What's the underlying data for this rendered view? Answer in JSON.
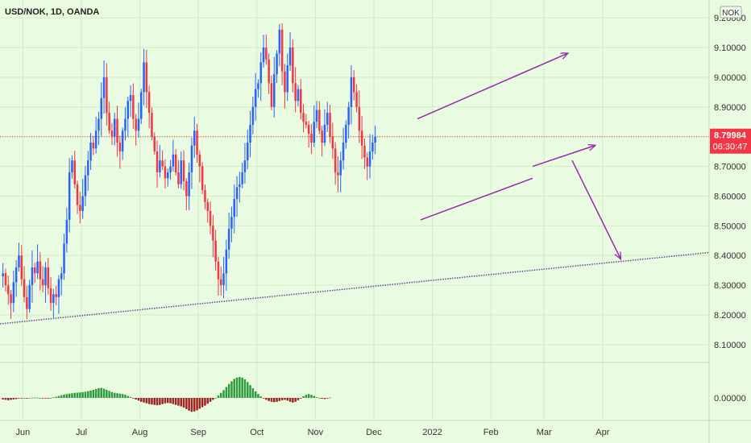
{
  "chart_data": {
    "type": "candlestick",
    "symbol_label": "USD/NOK, 1D, OANDA",
    "currency_badge": "NOK",
    "last_price_label": "8.79984",
    "countdown_label": "06:30:47",
    "ylim": [
      8.04,
      9.26
    ],
    "y_ticks": [
      "8.10000",
      "8.20000",
      "8.30000",
      "8.40000",
      "8.50000",
      "8.60000",
      "8.70000",
      "8.80000",
      "8.90000",
      "9.00000",
      "9.10000",
      "9.20000"
    ],
    "y_top_partial_label": "9.30000",
    "x_tick_labels": [
      {
        "label": "Jun",
        "bar": 8
      },
      {
        "label": "Jul",
        "bar": 30
      },
      {
        "label": "Aug",
        "bar": 52
      },
      {
        "label": "Sep",
        "bar": 74
      },
      {
        "label": "Oct",
        "bar": 96
      },
      {
        "label": "Nov",
        "bar": 118
      },
      {
        "label": "Dec",
        "bar": 140
      },
      {
        "label": "2022",
        "bar": 162
      },
      {
        "label": "Feb",
        "bar": 184
      },
      {
        "label": "Mar",
        "bar": 204
      },
      {
        "label": "Apr",
        "bar": 226
      }
    ],
    "closes": [
      8.34,
      8.3,
      8.27,
      8.24,
      8.31,
      8.36,
      8.4,
      8.32,
      8.26,
      8.22,
      8.3,
      8.36,
      8.34,
      8.38,
      8.32,
      8.3,
      8.36,
      8.29,
      8.24,
      8.27,
      8.26,
      8.32,
      8.34,
      8.44,
      8.52,
      8.68,
      8.72,
      8.64,
      8.57,
      8.55,
      8.6,
      8.67,
      8.72,
      8.78,
      8.76,
      8.82,
      8.86,
      8.93,
      9.0,
      8.88,
      8.82,
      8.8,
      8.86,
      8.78,
      8.75,
      8.82,
      8.86,
      8.92,
      8.94,
      8.86,
      8.82,
      8.86,
      8.95,
      9.05,
      8.95,
      8.88,
      8.8,
      8.75,
      8.68,
      8.72,
      8.7,
      8.66,
      8.68,
      8.7,
      8.74,
      8.68,
      8.64,
      8.72,
      8.65,
      8.6,
      8.68,
      8.77,
      8.82,
      8.74,
      8.7,
      8.62,
      8.58,
      8.55,
      8.5,
      8.45,
      8.38,
      8.32,
      8.3,
      8.34,
      8.42,
      8.49,
      8.53,
      8.59,
      8.63,
      8.64,
      8.68,
      8.72,
      8.78,
      8.84,
      8.9,
      8.96,
      8.98,
      9.05,
      9.1,
      9.06,
      8.98,
      8.9,
      9.01,
      9.08,
      9.16,
      9.02,
      8.95,
      9.04,
      9.1,
      8.98,
      8.92,
      8.96,
      8.88,
      8.85,
      8.84,
      8.81,
      8.78,
      8.85,
      8.89,
      8.82,
      8.78,
      8.84,
      8.88,
      8.8,
      8.76,
      8.68,
      8.67,
      8.72,
      8.78,
      8.84,
      8.9,
      9.0,
      8.95,
      8.9,
      8.82,
      8.77,
      8.73,
      8.7,
      8.75,
      8.78,
      8.8
    ],
    "trendline_value_at_price_axis": 8.41,
    "countertrend_channel_label_count": 2,
    "oscillator_zero_label": "0.00000",
    "oscillator": [
      -0.08,
      -0.1,
      -0.12,
      -0.1,
      -0.08,
      -0.06,
      -0.03,
      -0.02,
      0.0,
      -0.01,
      0.0,
      0.01,
      0.02,
      0.01,
      0.0,
      -0.02,
      -0.03,
      -0.02,
      0.0,
      0.03,
      0.06,
      0.1,
      0.14,
      0.17,
      0.2,
      0.22,
      0.24,
      0.26,
      0.27,
      0.28,
      0.3,
      0.32,
      0.35,
      0.38,
      0.42,
      0.46,
      0.5,
      0.52,
      0.48,
      0.42,
      0.36,
      0.3,
      0.26,
      0.24,
      0.22,
      0.2,
      0.16,
      0.1,
      0.04,
      -0.02,
      -0.08,
      -0.14,
      -0.2,
      -0.24,
      -0.28,
      -0.32,
      -0.34,
      -0.36,
      -0.38,
      -0.36,
      -0.32,
      -0.28,
      -0.26,
      -0.28,
      -0.32,
      -0.36,
      -0.4,
      -0.44,
      -0.5,
      -0.58,
      -0.66,
      -0.72,
      -0.7,
      -0.64,
      -0.56,
      -0.48,
      -0.4,
      -0.3,
      -0.2,
      -0.1,
      0.0,
      0.12,
      0.26,
      0.4,
      0.56,
      0.72,
      0.86,
      0.98,
      1.05,
      1.08,
      1.05,
      0.96,
      0.82,
      0.66,
      0.5,
      0.34,
      0.2,
      0.08,
      -0.02,
      -0.1,
      -0.16,
      -0.2,
      -0.22,
      -0.2,
      -0.16,
      -0.12,
      -0.1,
      -0.14,
      -0.2,
      -0.24,
      -0.2,
      -0.12,
      -0.02,
      0.08,
      0.16,
      0.2,
      0.16,
      0.1,
      0.04,
      0.0,
      -0.04,
      -0.06,
      -0.02,
      0.02
    ],
    "colors": {
      "up": "#2962ff",
      "down": "#f23645",
      "osc_pos": "#2e9b3c",
      "osc_neg": "#a02222",
      "annotation": "#9c27b0",
      "price_line": "#e53935",
      "trendline": "#5d4a8a",
      "background": "#e9fbe0",
      "grid": "#d0ecc5"
    }
  }
}
